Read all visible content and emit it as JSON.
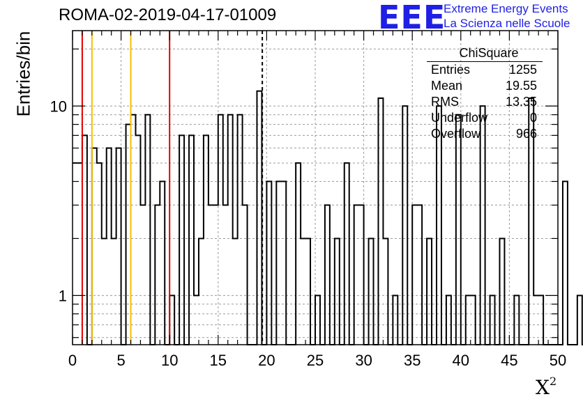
{
  "title": "ROMA-02-2019-04-17-01009",
  "logo": {
    "mark": "EEE",
    "line1": "Extreme Energy Events",
    "line2": "La Scienza nelle Scuole",
    "color": "#1f1fe6"
  },
  "stats_box": {
    "title": "ChiSquare",
    "rows": [
      {
        "key": "Entries",
        "value": "1255"
      },
      {
        "key": "Mean",
        "value": "19.55"
      },
      {
        "key": "RMS",
        "value": "13.35"
      },
      {
        "key": "Underflow",
        "value": "0"
      },
      {
        "key": "Overflow",
        "value": "966"
      }
    ]
  },
  "chart_data": {
    "type": "histogram",
    "title": "ROMA-02-2019-04-17-01009",
    "xlabel": "X²",
    "ylabel": "Entries/bin",
    "y_scale": "log",
    "xlim": [
      0,
      50
    ],
    "ylim": [
      0.55,
      25
    ],
    "bin_width": 0.5,
    "x_ticks": [
      0,
      5,
      10,
      15,
      20,
      25,
      30,
      35,
      40,
      45,
      50
    ],
    "y_tick_labels": [
      1,
      10
    ],
    "grid": true,
    "line_color": "#000000",
    "counts": [
      5,
      5,
      7,
      0,
      6,
      5,
      2,
      6,
      2,
      6,
      0,
      8,
      9,
      7,
      3,
      9,
      0,
      3,
      4,
      0,
      1,
      0,
      7,
      0,
      7,
      1,
      2,
      7,
      3,
      3,
      9,
      3,
      9,
      2,
      9,
      3,
      0,
      0,
      12,
      0,
      4,
      0,
      4,
      4,
      0,
      0,
      5,
      2,
      2,
      0,
      1,
      0,
      3,
      0,
      2,
      0,
      5,
      0,
      3,
      3,
      0,
      2,
      0,
      11,
      2,
      0,
      1,
      0,
      10,
      0,
      3,
      3,
      0,
      2,
      0,
      10,
      0,
      1,
      0,
      9,
      0,
      1,
      1,
      0,
      10,
      0,
      1,
      0,
      2,
      0,
      0,
      1,
      0,
      0,
      11,
      1,
      1,
      0,
      0,
      0,
      0,
      4,
      0,
      0,
      1,
      0,
      0,
      0,
      0,
      6,
      0,
      2
    ],
    "vertical_lines": [
      {
        "x": 1,
        "color": "#e00000",
        "style": "solid"
      },
      {
        "x": 2,
        "color": "#f5c000",
        "style": "solid"
      },
      {
        "x": 6,
        "color": "#f5c000",
        "style": "solid"
      },
      {
        "x": 10,
        "color": "#e00000",
        "style": "solid"
      },
      {
        "x": 19.55,
        "color": "#000000",
        "style": "dashed",
        "label": "mean"
      }
    ]
  }
}
